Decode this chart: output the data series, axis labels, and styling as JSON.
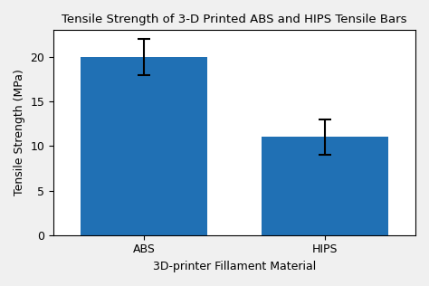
{
  "categories": [
    "ABS",
    "HIPS"
  ],
  "values": [
    20.0,
    11.0
  ],
  "errors_upper": [
    2.0,
    2.0
  ],
  "errors_lower": [
    2.0,
    2.0
  ],
  "bar_color": "#2070b4",
  "title": "Tensile Strength of 3-D Printed ABS and HIPS Tensile Bars",
  "xlabel": "3D-printer Fillament Material",
  "ylabel": "Tensile Strength (MPa)",
  "ylim": [
    0,
    23
  ],
  "yticks": [
    0,
    5,
    10,
    15,
    20
  ],
  "title_fontsize": 9.5,
  "label_fontsize": 9,
  "tick_fontsize": 9,
  "bar_width": 0.35,
  "x_positions": [
    0.25,
    0.75
  ],
  "xlim": [
    0,
    1.0
  ],
  "capsize": 5,
  "elinewidth": 1.5,
  "ecapthick": 1.5,
  "ecolor": "black",
  "figure_facecolor": "#f0f0f0",
  "axes_facecolor": "#ffffff"
}
